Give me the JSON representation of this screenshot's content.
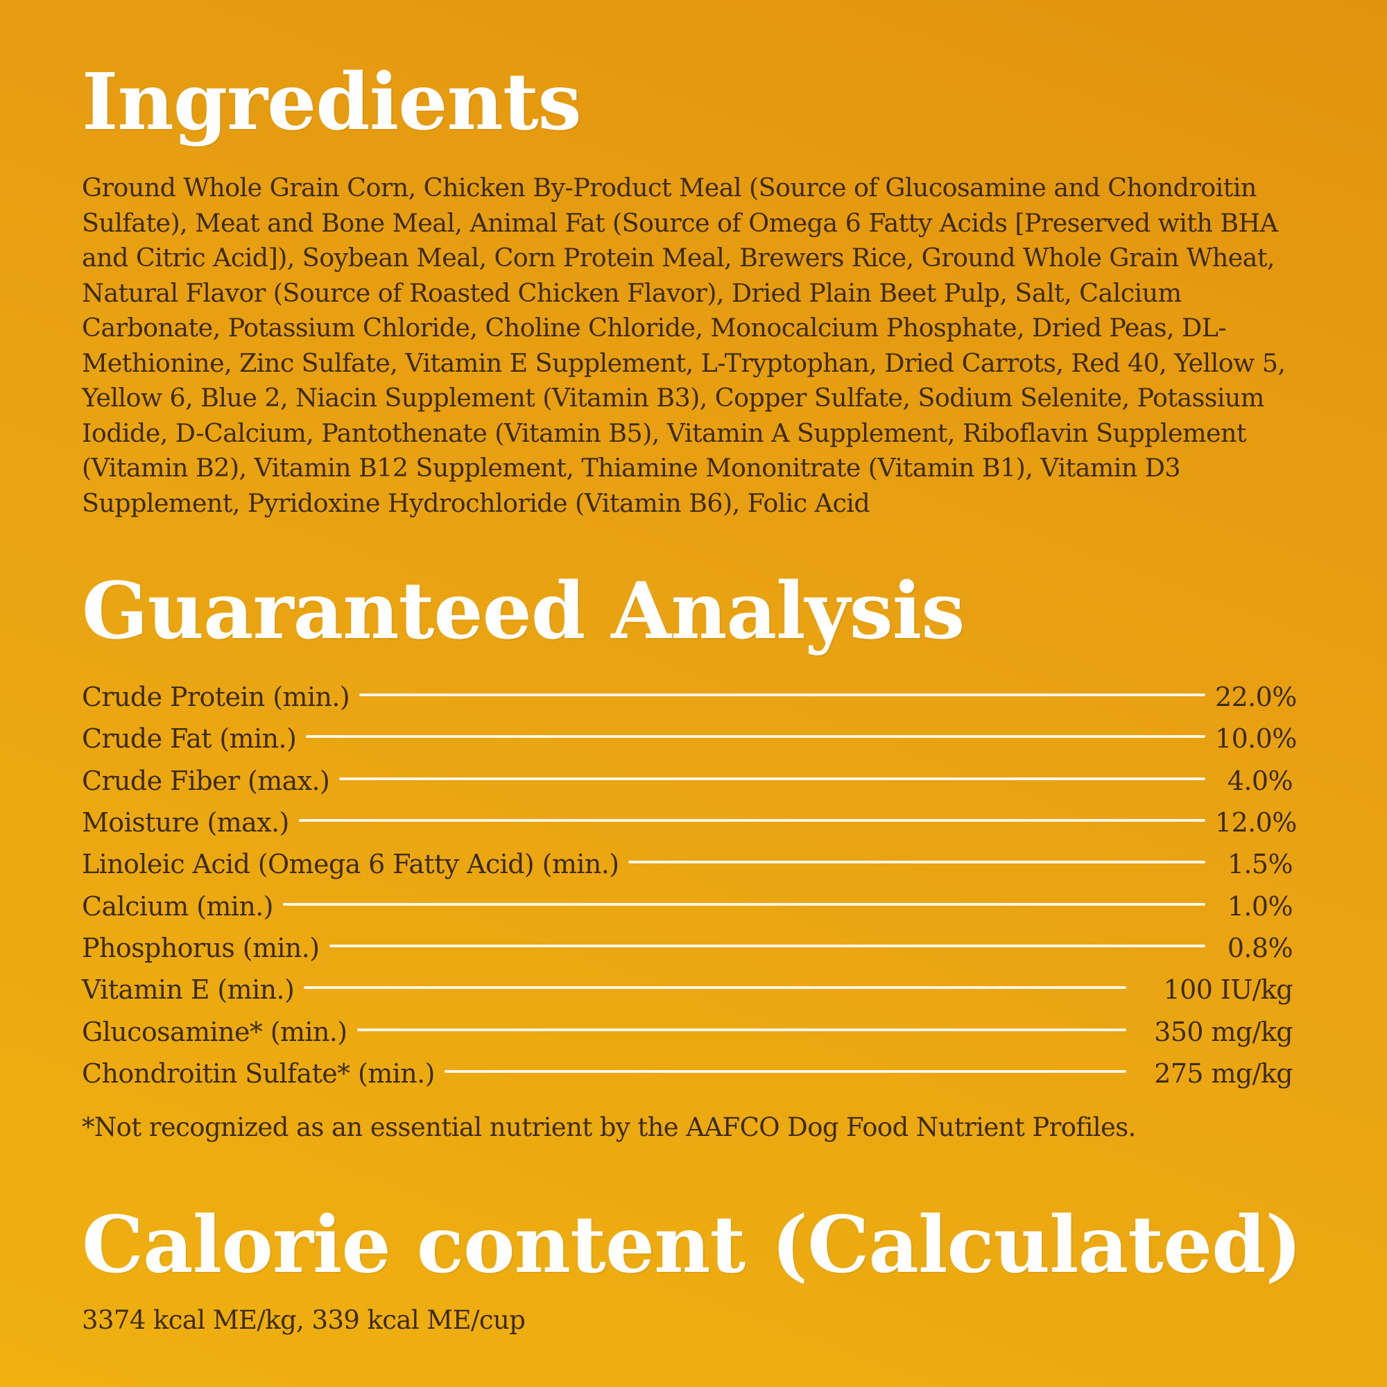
{
  "ingredients": {
    "heading": "Ingredients",
    "text": "Ground Whole Grain Corn, Chicken By-Product Meal (Source of Glucosamine and Chondroitin Sulfate), Meat and Bone Meal, Animal Fat (Source of Omega 6 Fatty Acids [Preserved with BHA and Citric Acid]), Soybean Meal, Corn Protein Meal, Brewers Rice, Ground Whole Grain Wheat, Natural Flavor (Source of Roasted Chicken Flavor), Dried Plain Beet Pulp, Salt, Calcium Carbonate, Potassium Chloride, Choline Chloride, Monocalcium Phosphate, Dried Peas, DL-Methionine, Zinc Sulfate, Vitamin E Supplement, L-Tryptophan, Dried Carrots, Red 40, Yellow 5, Yellow 6, Blue 2, Niacin Supplement (Vitamin B3), Copper Sulfate, Sodium Selenite, Potassium Iodide, D-Calcium, Pantothenate (Vitamin B5), Vitamin A Supplement, Riboflavin Supplement (Vitamin B2), Vitamin B12 Supplement, Thiamine Mononitrate (Vitamin B1), Vitamin D3 Supplement, Pyridoxine Hydrochloride (Vitamin B6), Folic Acid"
  },
  "analysis": {
    "heading": "Guaranteed Analysis",
    "rows": [
      {
        "label": "Crude Protein (min.)",
        "value": "22.0%"
      },
      {
        "label": "Crude Fat (min.)",
        "value": "10.0%"
      },
      {
        "label": "Crude Fiber (max.)",
        "value": "4.0%"
      },
      {
        "label": "Moisture (max.)",
        "value": "12.0%"
      },
      {
        "label": "Linoleic Acid (Omega 6 Fatty Acid) (min.)",
        "value": "1.5%"
      },
      {
        "label": "Calcium (min.)",
        "value": "1.0%"
      },
      {
        "label": "Phosphorus (min.)",
        "value": "0.8%"
      },
      {
        "label": "Vitamin E (min.)",
        "value": "100 IU/kg"
      },
      {
        "label": "Glucosamine* (min.)",
        "value": "350 mg/kg"
      },
      {
        "label": "Chondroitin Sulfate* (min.)",
        "value": "275 mg/kg"
      }
    ],
    "footnote": "*Not recognized as an essential nutrient by the AAFCO Dog Food Nutrient Profiles."
  },
  "calorie": {
    "heading": "Calorie content (Calculated)",
    "text": "3374 kcal ME/kg, 339 kcal ME/cup"
  },
  "colors": {
    "background_top": "#e2930e",
    "background_bottom": "#efb010",
    "heading": "#ffffff",
    "body_text": "#3d2c12",
    "leader_line": "#fdf6e6"
  }
}
